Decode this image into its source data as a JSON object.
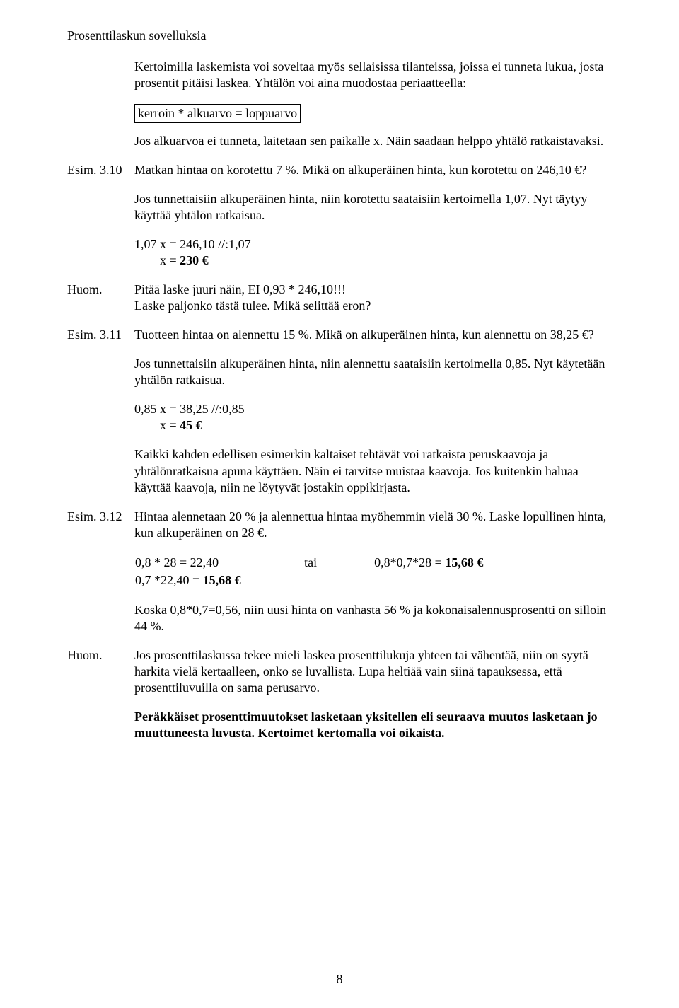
{
  "page": {
    "title": "Prosenttilaskun sovelluksia",
    "intro1": "Kertoimilla laskemista voi soveltaa myös sellaisissa tilanteissa, joissa ei tunneta lukua, josta prosentit pitäisi laskea. Yhtälön voi aina muodostaa periaatteella:",
    "formula": "kerroin * alkuarvo = loppuarvo",
    "intro2": "Jos alkuarvoa ei tunneta, laitetaan sen paikalle x. Näin saadaan helppo yhtälö ratkaistavaksi.",
    "ex310": {
      "label": "Esim. 3.10",
      "text": "Matkan hintaa on korotettu 7 %. Mikä on alkuperäinen hinta, kun korotettu on 246,10 €?",
      "explain": "Jos tunnettaisiin alkuperäinen hinta, niin korotettu saataisiin kertoimella 1,07. Nyt täytyy käyttää yhtälön ratkaisua.",
      "eq1": "1,07 x = 246,10  //:1,07",
      "eq2_prefix": "x = ",
      "eq2_value": "230 €"
    },
    "huom1": {
      "label": "Huom.",
      "text": "Pitää laske juuri näin, EI 0,93 * 246,10!!!",
      "text2": "Laske paljonko tästä tulee. Mikä selittää eron?"
    },
    "ex311": {
      "label": "Esim. 3.11",
      "text": "Tuotteen hintaa on alennettu 15 %. Mikä on alkuperäinen hinta, kun alennettu on 38,25 €?",
      "explain": "Jos tunnettaisiin alkuperäinen hinta, niin alennettu saataisiin kertoimella 0,85. Nyt käytetään yhtälön ratkaisua.",
      "eq1": "0,85 x = 38,25 //:0,85",
      "eq2_prefix": "x = ",
      "eq2_value": "45 €",
      "post": "Kaikki kahden edellisen esimerkin kaltaiset tehtävät voi ratkaista peruskaavoja ja yhtälönratkaisua apuna käyttäen. Näin ei tarvitse muistaa kaavoja. Jos kuitenkin haluaa käyttää kaavoja, niin ne löytyvät jostakin oppikirjasta."
    },
    "ex312": {
      "label": "Esim. 3.12",
      "text": "Hintaa alennetaan 20 % ja alennettua hintaa myöhemmin vielä 30 %. Laske lopullinen hinta, kun alkuperäinen on 28 €.",
      "calc_left1": "0,8 * 28 = 22,40",
      "calc_tai": "tai",
      "calc_right_prefix": "0,8*0,7*28 = ",
      "calc_right_value": "15,68 €",
      "calc_left2_prefix": "0,7 *22,40 = ",
      "calc_left2_value": "15,68 €",
      "post": "Koska 0,8*0,7=0,56, niin uusi hinta on vanhasta 56 % ja kokonaisalennusprosentti on silloin 44 %."
    },
    "huom2": {
      "label": "Huom.",
      "text": "Jos prosenttilaskussa tekee mieli laskea prosenttilukuja yhteen tai vähentää, niin on syytä harkita vielä kertaalleen, onko se luvallista. Lupa heltiää vain siinä tapauksessa, että prosenttiluvuilla on sama perusarvo."
    },
    "summary": "Peräkkäiset prosenttimuutokset lasketaan yksitellen eli seuraava muutos lasketaan jo muuttuneesta luvusta. Kertoimet kertomalla voi oikaista.",
    "pageNumber": "8"
  }
}
